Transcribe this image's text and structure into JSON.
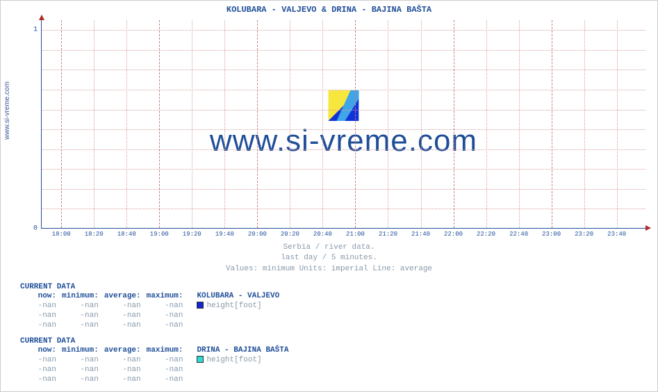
{
  "chart": {
    "title": "KOLUBARA -  VALJEVO &  DRINA -  BAJINA BAŠTA",
    "side_label": "www.si-vreme.com",
    "watermark": "www.si-vreme.com",
    "caption_lines": [
      "Serbia / river data.",
      "last day / 5 minutes.",
      "Values: minimum  Units: imperial  Line: average"
    ],
    "y_axis": {
      "min": 0,
      "max": 1.05,
      "ticks": [
        {
          "v": 0,
          "label": "0"
        },
        {
          "v": 1,
          "label": "1"
        }
      ],
      "minor_step": 0.1
    },
    "x_axis": {
      "labels": [
        "18:00",
        "18:20",
        "18:40",
        "19:00",
        "19:20",
        "19:40",
        "20:00",
        "20:20",
        "20:40",
        "21:00",
        "21:20",
        "21:40",
        "22:00",
        "22:20",
        "22:40",
        "23:00",
        "23:20",
        "23:40"
      ],
      "count": 18
    },
    "colors": {
      "axis": "#1f4e99",
      "grid": "#d9a0a0",
      "grid_major": "#c97c7c",
      "title": "#1f4e99",
      "muted": "#8899aa",
      "arrow": "#b02a2a",
      "series1_swatch": "#1425d1",
      "series2_swatch": "#2fd8d0",
      "logo_yellow": "#f7e63e",
      "logo_blue": "#1033d9"
    }
  },
  "data_blocks": [
    {
      "heading": "CURRENT DATA",
      "columns": [
        "now:",
        "minimum:",
        "average:",
        "maximum:"
      ],
      "series_label": "KOLUBARA -  VALJEVO",
      "unit_label": "height[foot]",
      "swatch_color": "#1425d1",
      "rows": [
        [
          "-nan",
          "-nan",
          "-nan",
          "-nan"
        ],
        [
          "-nan",
          "-nan",
          "-nan",
          "-nan"
        ],
        [
          "-nan",
          "-nan",
          "-nan",
          "-nan"
        ]
      ]
    },
    {
      "heading": "CURRENT DATA",
      "columns": [
        "now:",
        "minimum:",
        "average:",
        "maximum:"
      ],
      "series_label": "DRINA -  BAJINA BAŠTA",
      "unit_label": "height[foot]",
      "swatch_color": "#2fd8d0",
      "rows": [
        [
          "-nan",
          "-nan",
          "-nan",
          "-nan"
        ],
        [
          "-nan",
          "-nan",
          "-nan",
          "-nan"
        ],
        [
          "-nan",
          "-nan",
          "-nan",
          "-nan"
        ]
      ]
    }
  ]
}
